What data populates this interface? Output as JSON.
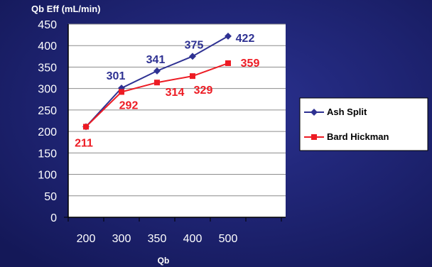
{
  "chart_data": {
    "type": "line",
    "title": "",
    "ylabel": "Qb Eff (mL/min)",
    "xlabel": "Qb",
    "categories": [
      "200",
      "300",
      "350",
      "400",
      "500"
    ],
    "ylim": [
      0,
      450
    ],
    "yticks": [
      0,
      50,
      100,
      150,
      200,
      250,
      300,
      350,
      400,
      450
    ],
    "grid": true,
    "legend": "right",
    "series": [
      {
        "name": "Ash Split",
        "values": [
          211,
          301,
          341,
          375,
          422
        ],
        "labels": [
          "",
          "301",
          "341",
          "375",
          "422"
        ],
        "color": "#2e3192",
        "marker": "diamond"
      },
      {
        "name": "Bard Hickman",
        "values": [
          211,
          292,
          314,
          329,
          359
        ],
        "labels": [
          "211",
          "292",
          "314",
          "329",
          "359"
        ],
        "color": "#ed1c24",
        "marker": "square"
      }
    ]
  },
  "colors": {
    "background": "#1a1f6e",
    "plot_area": "#ffffff",
    "axis_text": "#ffffff",
    "grid": "#8c8c8c"
  }
}
